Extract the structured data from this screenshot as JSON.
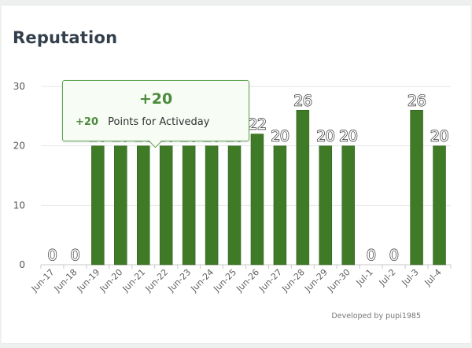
{
  "page": {
    "title": "Reputation",
    "credit": "Developed by pupi1985"
  },
  "tooltip": {
    "total": "+20",
    "points": "+20",
    "description": "Points for Activeday"
  },
  "chart_data": {
    "type": "bar",
    "categories": [
      "Jun-17",
      "Jun-18",
      "Jun-19",
      "Jun-20",
      "Jun-21",
      "Jun-22",
      "Jun-23",
      "Jun-24",
      "Jun-25",
      "Jun-26",
      "Jun-27",
      "Jun-28",
      "Jun-29",
      "Jun-30",
      "Jul-1",
      "Jul-2",
      "Jul-3",
      "Jul-4"
    ],
    "values": [
      0,
      0,
      20,
      20,
      20,
      20,
      20,
      20,
      20,
      22,
      20,
      26,
      20,
      20,
      0,
      0,
      26,
      20
    ],
    "ylim": [
      0,
      30
    ],
    "yticks": [
      0,
      10,
      20,
      30
    ],
    "grid": true,
    "legend": "none",
    "bar_color": "#3f7a26",
    "bar_outline": "#2f5a1c"
  }
}
